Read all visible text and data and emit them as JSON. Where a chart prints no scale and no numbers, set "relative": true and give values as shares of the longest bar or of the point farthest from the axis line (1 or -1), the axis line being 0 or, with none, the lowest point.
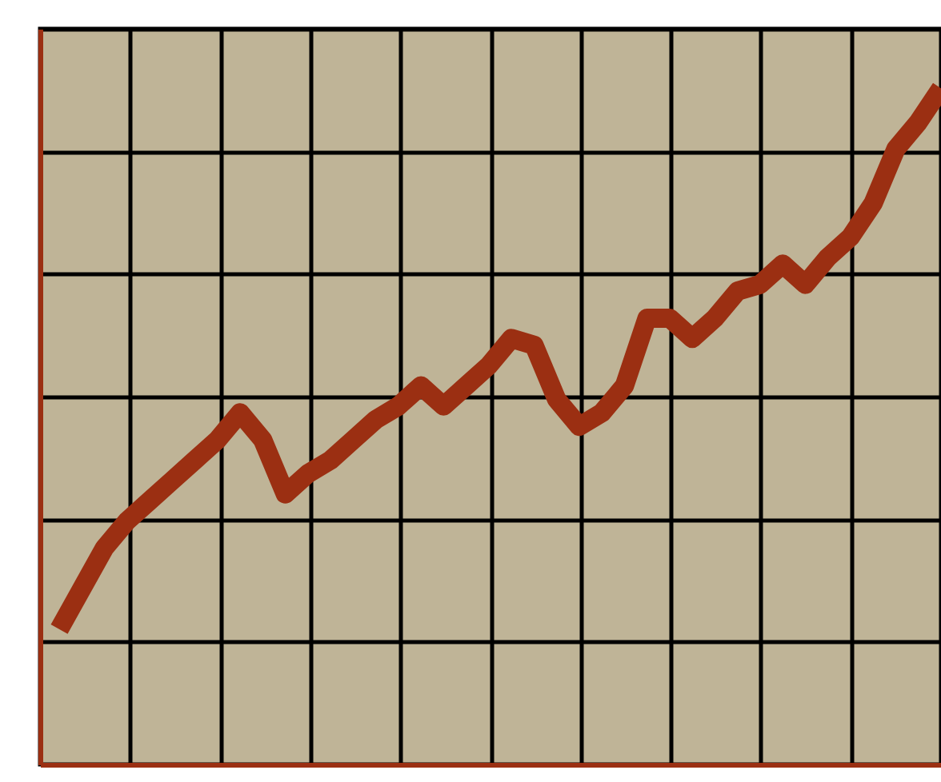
{
  "chart_data": {
    "type": "line",
    "relative": true,
    "grid": true,
    "categories": [
      null,
      null,
      null,
      null,
      null,
      null,
      null,
      null,
      null,
      null,
      null,
      null,
      null,
      null,
      null,
      null,
      null,
      null,
      null,
      null,
      null,
      null,
      null,
      null,
      null,
      null,
      null,
      null,
      null,
      null,
      null,
      null,
      null,
      null,
      null,
      null,
      null,
      null,
      null,
      null
    ],
    "series": [
      {
        "color": "#9b2f12",
        "values": [
          0.2,
          0.26,
          0.32,
          0.36,
          0.39,
          0.42,
          0.45,
          0.48,
          0.52,
          0.48,
          0.4,
          0.43,
          0.45,
          0.48,
          0.51,
          0.53,
          0.56,
          0.53,
          0.56,
          0.59,
          0.63,
          0.62,
          0.54,
          0.5,
          0.52,
          0.56,
          0.66,
          0.66,
          0.63,
          0.66,
          0.7,
          0.71,
          0.74,
          0.71,
          0.75,
          0.78,
          0.83,
          0.91,
          0.95,
          1
        ]
      }
    ]
  }
}
